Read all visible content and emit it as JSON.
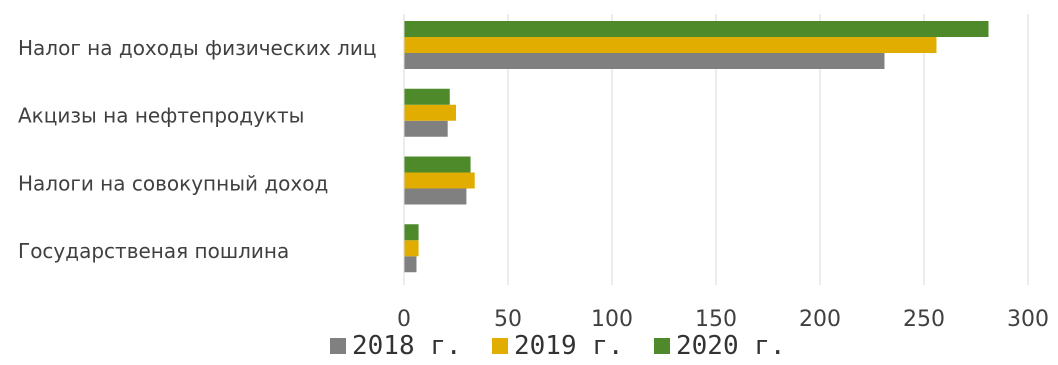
{
  "chart_data": {
    "type": "bar",
    "orientation": "horizontal",
    "title": "",
    "xlabel": "",
    "ylabel": "",
    "categories": [
      "Налог на доходы физических лиц",
      "Акцизы на нефтепродукты",
      "Налоги на совокупный доход",
      "Государственая пошлина"
    ],
    "series": [
      {
        "name": "2018 г.",
        "color": "#808080",
        "values": [
          231,
          21,
          30,
          6
        ]
      },
      {
        "name": "2019 г.",
        "color": "#e0ad00",
        "values": [
          256,
          25,
          34,
          7
        ]
      },
      {
        "name": "2020 г.",
        "color": "#4e8a2a",
        "values": [
          281,
          22,
          32,
          7
        ]
      }
    ],
    "xlim": [
      0,
      300
    ],
    "xticks": [
      "0",
      "50",
      "100",
      "150",
      "200",
      "250",
      "300"
    ],
    "grid": true,
    "legend_position": "bottom"
  }
}
